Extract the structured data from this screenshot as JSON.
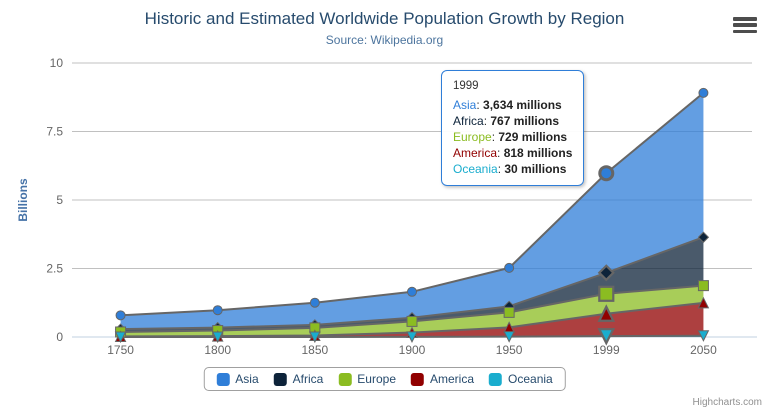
{
  "chart_data": {
    "type": "area",
    "stacking": "normal",
    "title": "Historic and Estimated Worldwide Population Growth by Region",
    "subtitle": "Source: Wikipedia.org",
    "xlabel": "",
    "ylabel": "Billions",
    "ylim": [
      0,
      10
    ],
    "yticks": [
      "0",
      "2.5",
      "5",
      "7.5",
      "10"
    ],
    "values_unit": "millions",
    "grid": true,
    "legend_position": "bottom",
    "categories": [
      "1750",
      "1800",
      "1850",
      "1900",
      "1950",
      "1999",
      "2050"
    ],
    "series": [
      {
        "name": "Asia",
        "color": "#2f7ed8",
        "marker": "circle",
        "values": [
          502,
          635,
          809,
          947,
          1402,
          3634,
          5268
        ]
      },
      {
        "name": "Africa",
        "color": "#0d233a",
        "marker": "diamond",
        "values": [
          106,
          107,
          111,
          133,
          221,
          767,
          1766
        ]
      },
      {
        "name": "Europe",
        "color": "#8bbc21",
        "marker": "square",
        "values": [
          163,
          203,
          276,
          408,
          547,
          729,
          628
        ]
      },
      {
        "name": "America",
        "color": "#910000",
        "marker": "triangle",
        "values": [
          18,
          31,
          54,
          156,
          339,
          818,
          1201
        ]
      },
      {
        "name": "Oceania",
        "color": "#1aadce",
        "marker": "triangle-down",
        "values": [
          2,
          2,
          2,
          6,
          13,
          30,
          46
        ]
      }
    ],
    "hover_index": 5,
    "hover_category": "1999",
    "fill_opacity": 0.75,
    "line_color": "#666666",
    "grid_color": "#c0c0c0",
    "axis_line_color": "#c0d0e0",
    "tick_label_color": "#666666",
    "yaxis_title_color": "#4572a7"
  },
  "tooltip": {
    "header": "1999",
    "border_color": "#2f7ed8",
    "rows": [
      {
        "name": "Asia",
        "color": "#2f7ed8",
        "value": "3,634 millions"
      },
      {
        "name": "Africa",
        "color": "#0d233a",
        "value": "767 millions"
      },
      {
        "name": "Europe",
        "color": "#8bbc21",
        "value": "729 millions"
      },
      {
        "name": "America",
        "color": "#910000",
        "value": "818 millions"
      },
      {
        "name": "Oceania",
        "color": "#1aadce",
        "value": "30 millions"
      }
    ]
  },
  "export_menu": {
    "icon": "hamburger-menu-icon"
  },
  "credits": {
    "label": "Highcharts.com"
  }
}
